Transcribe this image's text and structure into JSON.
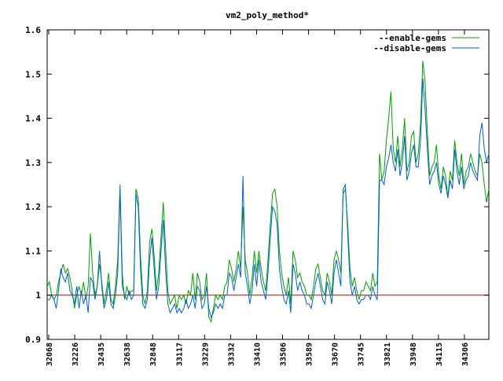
{
  "chart_data": {
    "type": "line",
    "title": "vm2_poly_method*",
    "xlabel": "",
    "ylabel": "",
    "ylim": [
      0.9,
      1.6
    ],
    "y_ticks": [
      0.9,
      1,
      1.1,
      1.2,
      1.3,
      1.4,
      1.5,
      1.6
    ],
    "y_tick_labels": [
      "0.9",
      "1",
      "1.1",
      "1.2",
      "1.3",
      "1.4",
      "1.5",
      "1.6"
    ],
    "x_tick_labels": [
      "32068",
      "32226",
      "32435",
      "32638",
      "32848",
      "33117",
      "33229",
      "33332",
      "33410",
      "33506",
      "33589",
      "33670",
      "33745",
      "33821",
      "33948",
      "34115",
      "34306"
    ],
    "grid": false,
    "legend_position": "top-right",
    "reference_line": {
      "y": 1,
      "color": "#cc0000"
    },
    "series": [
      {
        "name": "--enable-gems",
        "color": "#00a000",
        "values": [
          1.02,
          1.03,
          1.0,
          0.99,
          1.0,
          1.03,
          1.05,
          1.07,
          1.05,
          1.06,
          1.04,
          1.01,
          0.97,
          1.0,
          1.02,
          1.0,
          1.03,
          0.99,
          1.02,
          1.14,
          1.05,
          1.0,
          1.02,
          1.07,
          1.03,
          0.98,
          1.01,
          1.05,
          0.99,
          0.98,
          1.02,
          1.08,
          1.25,
          1.05,
          0.99,
          1.02,
          1.0,
          1.01,
          1.01,
          1.24,
          1.22,
          1.09,
          1.0,
          0.98,
          1.01,
          1.12,
          1.15,
          1.09,
          1.01,
          1.05,
          1.13,
          1.21,
          1.11,
          1.01,
          0.98,
          0.99,
          1.0,
          0.97,
          1.0,
          0.99,
          1.0,
          0.98,
          1.01,
          1.0,
          1.05,
          0.99,
          1.05,
          1.03,
          0.99,
          1.0,
          1.05,
          0.95,
          0.94,
          0.97,
          1.0,
          0.99,
          1.0,
          0.99,
          1.02,
          1.03,
          1.08,
          1.06,
          1.03,
          1.06,
          1.1,
          1.06,
          1.2,
          1.08,
          1.05,
          1.0,
          1.04,
          1.1,
          1.05,
          1.1,
          1.06,
          1.03,
          1.01,
          1.08,
          1.16,
          1.23,
          1.24,
          1.2,
          1.1,
          1.05,
          1.02,
          1.0,
          1.04,
          0.98,
          1.1,
          1.08,
          1.04,
          1.05,
          1.03,
          1.02,
          1.0,
          1.0,
          0.99,
          1.02,
          1.06,
          1.07,
          1.04,
          1.01,
          1.0,
          1.05,
          1.03,
          1.0,
          1.08,
          1.1,
          1.08,
          1.05,
          1.23,
          1.24,
          1.16,
          1.06,
          1.02,
          1.04,
          1.01,
          0.99,
          1.01,
          1.01,
          1.03,
          1.02,
          1.01,
          1.05,
          1.02,
          1.03,
          1.32,
          1.26,
          1.28,
          1.35,
          1.4,
          1.46,
          1.33,
          1.3,
          1.36,
          1.29,
          1.33,
          1.4,
          1.28,
          1.3,
          1.36,
          1.37,
          1.3,
          1.32,
          1.39,
          1.53,
          1.48,
          1.37,
          1.27,
          1.29,
          1.3,
          1.34,
          1.27,
          1.24,
          1.29,
          1.27,
          1.22,
          1.28,
          1.26,
          1.35,
          1.3,
          1.27,
          1.32,
          1.25,
          1.28,
          1.29,
          1.32,
          1.3,
          1.28,
          1.27,
          1.32,
          1.3,
          1.25,
          1.21,
          1.24
        ]
      },
      {
        "name": "--disable-gems",
        "color": "#0060d0",
        "values": [
          0.99,
          0.99,
          1.0,
          0.99,
          0.97,
          1.01,
          1.06,
          1.04,
          1.03,
          1.05,
          1.01,
          1.0,
          0.98,
          1.02,
          0.97,
          1.01,
          0.98,
          1.0,
          0.96,
          1.04,
          1.03,
          0.99,
          1.02,
          1.1,
          1.02,
          0.97,
          0.99,
          1.03,
          0.98,
          0.97,
          1.0,
          1.05,
          1.24,
          1.02,
          1.0,
          0.99,
          1.01,
          0.99,
          1.0,
          1.23,
          1.2,
          1.06,
          0.98,
          0.97,
          0.99,
          1.08,
          1.13,
          1.06,
          0.99,
          1.02,
          1.1,
          1.17,
          1.06,
          0.98,
          0.96,
          0.97,
          0.98,
          0.96,
          0.97,
          0.96,
          0.97,
          0.99,
          0.97,
          0.98,
          1.0,
          0.97,
          1.02,
          1.01,
          0.97,
          0.98,
          1.02,
          0.97,
          0.95,
          0.96,
          0.98,
          0.97,
          0.98,
          0.97,
          1.0,
          1.0,
          1.05,
          1.04,
          1.01,
          1.04,
          1.07,
          1.04,
          1.27,
          1.05,
          1.02,
          0.98,
          1.01,
          1.07,
          1.02,
          1.08,
          1.03,
          1.01,
          0.99,
          1.05,
          1.13,
          1.2,
          1.19,
          1.16,
          1.06,
          1.02,
          0.99,
          0.98,
          1.01,
          0.96,
          1.07,
          1.05,
          1.01,
          1.03,
          1.01,
          1.0,
          0.98,
          0.98,
          0.97,
          1.0,
          1.03,
          1.05,
          1.02,
          0.99,
          0.98,
          1.03,
          1.01,
          0.98,
          1.05,
          1.08,
          1.05,
          1.02,
          1.24,
          1.25,
          1.14,
          1.03,
          1.0,
          1.02,
          0.99,
          0.98,
          0.99,
          0.99,
          1.0,
          1.0,
          0.99,
          1.02,
          1.0,
          0.99,
          1.26,
          1.26,
          1.25,
          1.29,
          1.31,
          1.34,
          1.3,
          1.28,
          1.33,
          1.27,
          1.3,
          1.36,
          1.26,
          1.28,
          1.32,
          1.34,
          1.29,
          1.29,
          1.35,
          1.49,
          1.42,
          1.33,
          1.25,
          1.27,
          1.28,
          1.3,
          1.25,
          1.23,
          1.27,
          1.25,
          1.22,
          1.26,
          1.24,
          1.33,
          1.28,
          1.25,
          1.29,
          1.24,
          1.26,
          1.27,
          1.3,
          1.28,
          1.27,
          1.26,
          1.36,
          1.39,
          1.33,
          1.3,
          1.32
        ]
      }
    ]
  }
}
